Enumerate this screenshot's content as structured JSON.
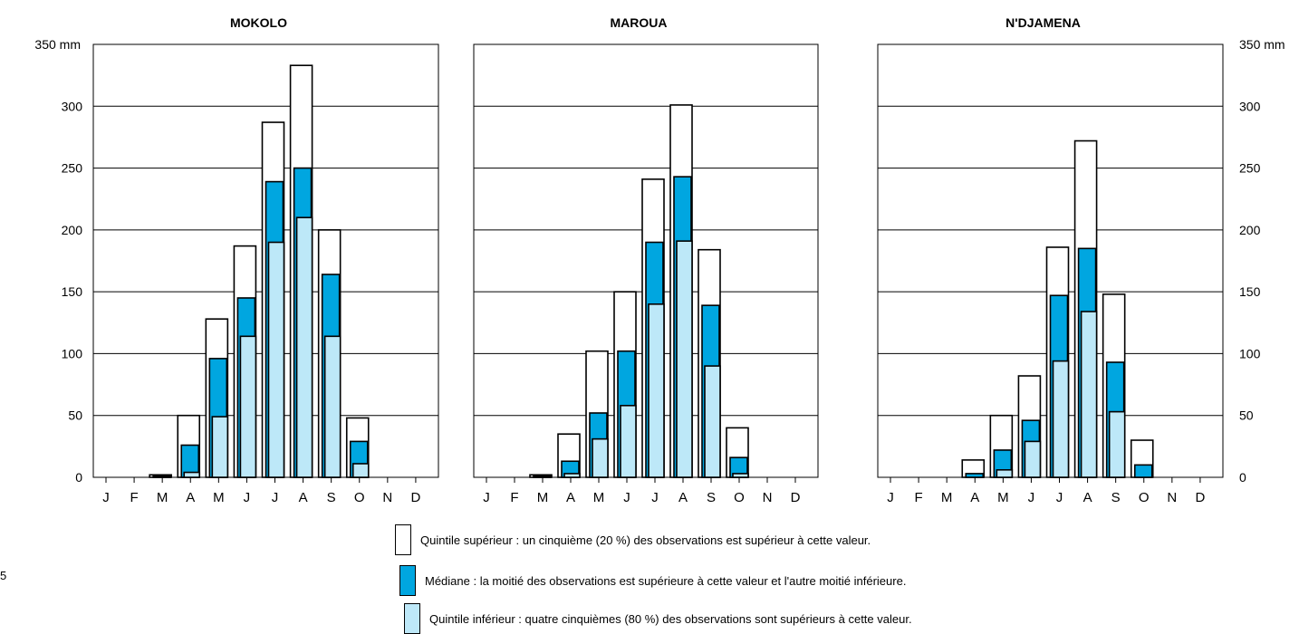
{
  "chart_data": [
    {
      "type": "bar",
      "title": "MOKOLO",
      "categories": [
        "J",
        "F",
        "M",
        "A",
        "M",
        "J",
        "J",
        "A",
        "S",
        "O",
        "N",
        "D"
      ],
      "ylim": [
        0,
        350
      ],
      "yticks": [
        0,
        50,
        100,
        150,
        200,
        250,
        300,
        350
      ],
      "ytick_labels": [
        "0",
        "50",
        "100",
        "150",
        "200",
        "250",
        "300",
        "350 mm"
      ],
      "series": [
        {
          "values": [
            0,
            0,
            2,
            50,
            128,
            187,
            287,
            333,
            200,
            48,
            0,
            0
          ]
        },
        {
          "values": [
            0,
            0,
            1,
            26,
            96,
            145,
            239,
            250,
            164,
            29,
            0,
            0
          ]
        },
        {
          "values": [
            0,
            0,
            0,
            4,
            49,
            114,
            190,
            210,
            114,
            11,
            0,
            0
          ]
        }
      ]
    },
    {
      "type": "bar",
      "title": "MAROUA",
      "categories": [
        "J",
        "F",
        "M",
        "A",
        "M",
        "J",
        "J",
        "A",
        "S",
        "O",
        "N",
        "D"
      ],
      "ylim": [
        0,
        350
      ],
      "yticks": [
        0,
        50,
        100,
        150,
        200,
        250,
        300,
        350
      ],
      "series": [
        {
          "values": [
            0,
            0,
            2,
            35,
            102,
            150,
            241,
            301,
            184,
            40,
            0,
            0
          ]
        },
        {
          "values": [
            0,
            0,
            1,
            13,
            52,
            102,
            190,
            243,
            139,
            16,
            0,
            0
          ]
        },
        {
          "values": [
            0,
            0,
            0,
            3,
            31,
            58,
            140,
            191,
            90,
            3,
            0,
            0
          ]
        }
      ]
    },
    {
      "type": "bar",
      "title": "N'DJAMENA",
      "categories": [
        "J",
        "F",
        "M",
        "A",
        "M",
        "J",
        "J",
        "A",
        "S",
        "O",
        "N",
        "D"
      ],
      "ylim": [
        0,
        350
      ],
      "yticks": [
        0,
        50,
        100,
        150,
        200,
        250,
        300,
        350
      ],
      "ytick_labels": [
        "0",
        "50",
        "100",
        "150",
        "200",
        "250",
        "300",
        "350 mm"
      ],
      "series": [
        {
          "values": [
            0,
            0,
            0,
            14,
            50,
            82,
            186,
            272,
            148,
            30,
            0,
            0
          ]
        },
        {
          "values": [
            0,
            0,
            0,
            3,
            22,
            46,
            147,
            185,
            93,
            10,
            0,
            0
          ]
        },
        {
          "values": [
            0,
            0,
            0,
            0,
            6,
            29,
            94,
            134,
            53,
            0,
            0,
            0
          ]
        }
      ]
    }
  ],
  "colors": {
    "upper_quintile": "#ffffff",
    "median": "#00a6e0",
    "lower_quintile": "#bde8f8",
    "grid": "#000000"
  },
  "legend": [
    {
      "key": "upper_quintile",
      "label": "Quintile supérieur : un cinquième (20 %) des observations est supérieur à cette valeur."
    },
    {
      "key": "median",
      "label": "Médiane : la moitié des observations est supérieure à cette valeur et l'autre moitié inférieure."
    },
    {
      "key": "lower_quintile",
      "label": "Quintile inférieur : quatre cinquièmes (80 %) des observations sont supérieurs à cette valeur."
    }
  ],
  "side_note": "5"
}
